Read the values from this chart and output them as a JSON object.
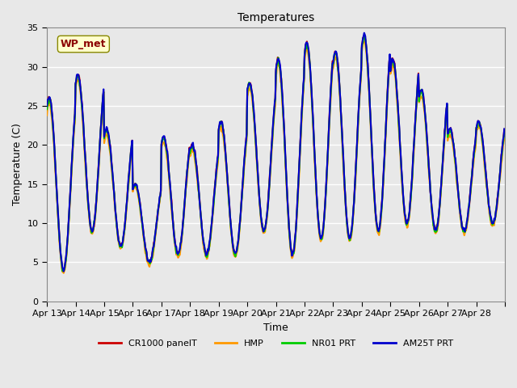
{
  "title": "Temperatures",
  "xlabel": "Time",
  "ylabel": "Temperature (C)",
  "ylim": [
    0,
    35
  ],
  "background_color": "#e8e8e8",
  "plot_bg_color": "#e8e8e8",
  "grid_color": "white",
  "series": [
    {
      "label": "CR1000 panelT",
      "color": "#cc0000",
      "lw": 1.5
    },
    {
      "label": "HMP",
      "color": "#ff9900",
      "lw": 1.5
    },
    {
      "label": "NR01 PRT",
      "color": "#00cc00",
      "lw": 1.5
    },
    {
      "label": "AM25T PRT",
      "color": "#0000cc",
      "lw": 1.5
    }
  ],
  "station_label": "WP_met",
  "station_label_color": "#8b0000",
  "station_box_color": "#ffffcc",
  "station_box_edge": "#888800",
  "x_tick_labels": [
    "Apr 13",
    "Apr 14",
    "Apr 15",
    "Apr 16",
    "Apr 17",
    "Apr 18",
    "Apr 19",
    "Apr 20",
    "Apr 21",
    "Apr 22",
    "Apr 23",
    "Apr 24",
    "Apr 25",
    "Apr 26",
    "Apr 27",
    "Apr 28"
  ],
  "n_days": 16,
  "samples_per_day": 48,
  "day_peaks": [
    26,
    29,
    22,
    15,
    21,
    20,
    23,
    28,
    31,
    33,
    32,
    34,
    31,
    27,
    22,
    23
  ],
  "day_troughs": [
    4,
    9,
    7,
    5,
    6,
    6,
    6,
    9,
    6,
    8,
    8,
    9,
    10,
    9,
    9,
    10
  ],
  "offsets_hmp": [
    -0.5,
    -0.5,
    -0.5,
    -0.5,
    -0.5,
    -0.5,
    -0.5,
    -0.5,
    -0.5,
    -0.5,
    -0.5,
    -0.5,
    -0.5,
    -0.5,
    -0.5,
    -0.5
  ],
  "offsets_nr01": [
    -0.3,
    -0.3,
    -0.3,
    -0.3,
    -0.3,
    -0.3,
    -0.3,
    -0.3,
    -0.3,
    -0.3,
    -0.3,
    -0.3,
    -0.3,
    -0.3,
    -0.3,
    -0.3
  ],
  "offsets_am25": [
    0.2,
    0.2,
    0.2,
    0.2,
    0.2,
    0.2,
    0.2,
    0.2,
    0.2,
    0.2,
    0.2,
    0.2,
    0.2,
    0.2,
    0.2,
    0.2
  ]
}
